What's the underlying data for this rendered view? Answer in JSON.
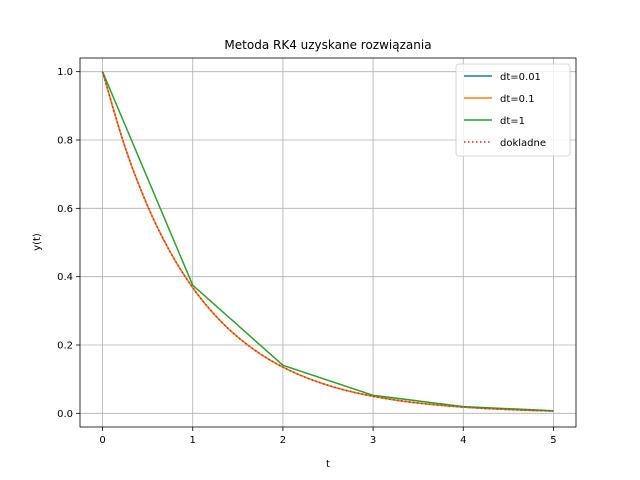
{
  "chart_data": {
    "type": "line",
    "title": "Metoda RK4 uzyskane rozwiązania",
    "xlabel": "t",
    "ylabel": "y(t)",
    "xlim": [
      -0.25,
      5.25
    ],
    "ylim": [
      -0.04,
      1.04
    ],
    "xticks": [
      0,
      1,
      2,
      3,
      4,
      5
    ],
    "yticks": [
      0.0,
      0.2,
      0.4,
      0.6,
      0.8,
      1.0
    ],
    "xtick_labels": [
      "0",
      "1",
      "2",
      "3",
      "4",
      "5"
    ],
    "ytick_labels": [
      "0.0",
      "0.2",
      "0.4",
      "0.6",
      "0.8",
      "1.0"
    ],
    "grid": true,
    "legend_position": "top-right",
    "series": [
      {
        "name": "dt=0.01",
        "color": "#1f77b4",
        "style": "solid",
        "x": [
          0,
          0.25,
          0.5,
          0.75,
          1,
          1.25,
          1.5,
          1.75,
          2,
          2.25,
          2.5,
          2.75,
          3,
          3.25,
          3.5,
          3.75,
          4,
          4.25,
          4.5,
          4.75,
          5
        ],
        "y": [
          1.0,
          0.7788,
          0.6065,
          0.4724,
          0.3679,
          0.2865,
          0.2231,
          0.1738,
          0.1353,
          0.1054,
          0.0821,
          0.0639,
          0.0498,
          0.0388,
          0.0302,
          0.0235,
          0.0183,
          0.0143,
          0.0111,
          0.0087,
          0.0067
        ]
      },
      {
        "name": "dt=0.1",
        "color": "#ff7f0e",
        "style": "solid",
        "x": [
          0,
          0.25,
          0.5,
          0.75,
          1,
          1.25,
          1.5,
          1.75,
          2,
          2.25,
          2.5,
          2.75,
          3,
          3.25,
          3.5,
          3.75,
          4,
          4.25,
          4.5,
          4.75,
          5
        ],
        "y": [
          1.0,
          0.7788,
          0.6065,
          0.4724,
          0.3679,
          0.2865,
          0.2231,
          0.1738,
          0.1353,
          0.1054,
          0.0821,
          0.0639,
          0.0498,
          0.0388,
          0.0302,
          0.0235,
          0.0183,
          0.0143,
          0.0111,
          0.0087,
          0.0067
        ]
      },
      {
        "name": "dt=1",
        "color": "#2ca02c",
        "style": "solid",
        "x": [
          0,
          1,
          2,
          3,
          4,
          5
        ],
        "y": [
          1.0,
          0.375,
          0.1406,
          0.0527,
          0.0198,
          0.0074
        ]
      },
      {
        "name": "dokladne",
        "color": "#d62728",
        "style": "dotted",
        "x": [
          0,
          0.25,
          0.5,
          0.75,
          1,
          1.25,
          1.5,
          1.75,
          2,
          2.25,
          2.5,
          2.75,
          3,
          3.25,
          3.5,
          3.75,
          4,
          4.25,
          4.5,
          4.75,
          5
        ],
        "y": [
          1.0,
          0.7788,
          0.6065,
          0.4724,
          0.3679,
          0.2865,
          0.2231,
          0.1738,
          0.1353,
          0.1054,
          0.0821,
          0.0639,
          0.0498,
          0.0388,
          0.0302,
          0.0235,
          0.0183,
          0.0143,
          0.0111,
          0.0087,
          0.0067
        ]
      }
    ]
  }
}
